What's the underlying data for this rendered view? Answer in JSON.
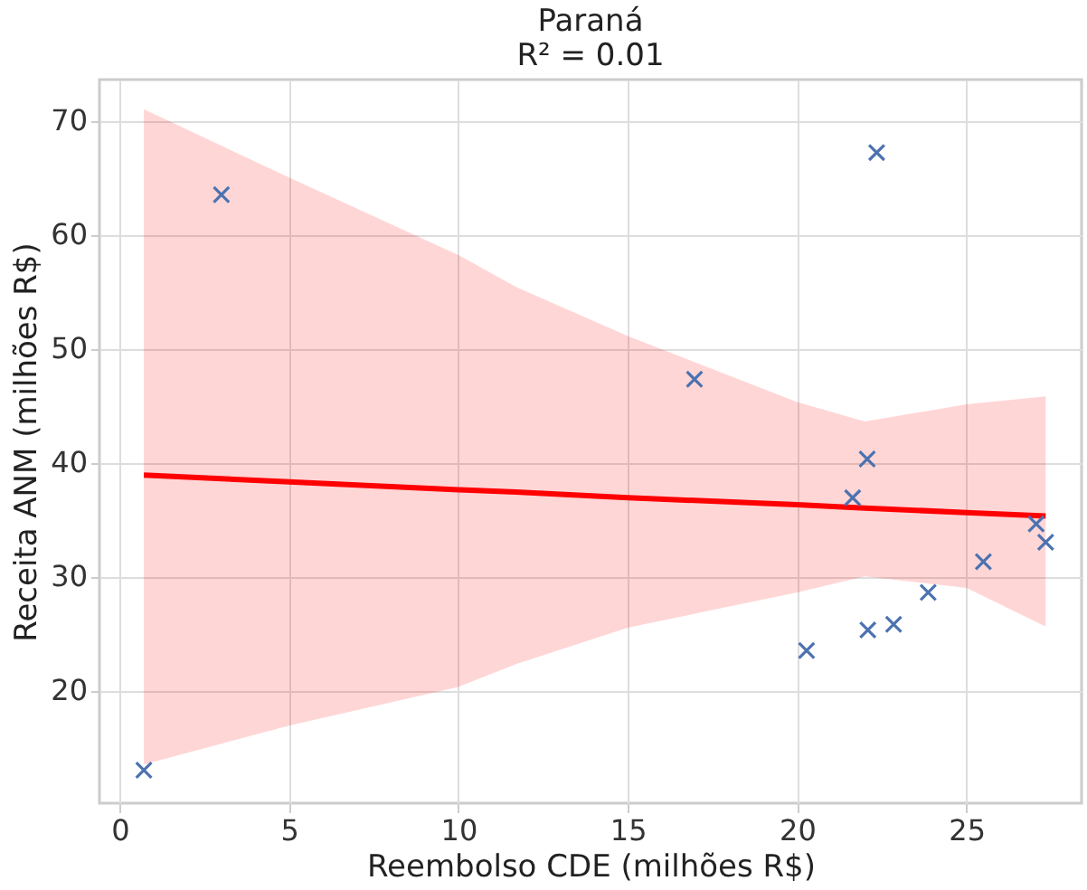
{
  "chart_data": {
    "type": "scatter",
    "title": "Paraná",
    "subtitle": "R² = 0.01",
    "xlabel": "Reembolso CDE (milhões R$)",
    "ylabel": "Receita ANM (milhões R$)",
    "xlim": [
      -0.6,
      28.4
    ],
    "ylim": [
      10.1,
      73.6
    ],
    "xticks": [
      0,
      5,
      10,
      15,
      20,
      25
    ],
    "yticks": [
      20,
      30,
      40,
      50,
      60,
      70
    ],
    "grid": true,
    "marker": "cross",
    "series": [
      {
        "color": "#4c72b0",
        "x": [
          0.71,
          3.0,
          16.97,
          22.35,
          22.07,
          21.64,
          20.28,
          22.09,
          22.85,
          23.87,
          25.5,
          27.06,
          27.34
        ],
        "values": [
          13.0,
          63.5,
          47.3,
          67.2,
          40.3,
          36.9,
          23.5,
          25.3,
          25.8,
          28.6,
          31.3,
          34.6,
          33.0
        ]
      },
      {
        "type": "line",
        "color": "#ff0000",
        "marker": "none",
        "x": [
          0.71,
          5,
          10,
          11.7,
          15,
          20,
          22,
          25,
          27.34
        ],
        "values": [
          38.9,
          38.3,
          37.6,
          37.4,
          36.9,
          36.3,
          36.0,
          35.6,
          35.3
        ],
        "lower": [
          13.5,
          16.9,
          20.3,
          22.3,
          25.5,
          28.6,
          30.0,
          29.0,
          25.6
        ],
        "upper": [
          71.0,
          65.0,
          58.2,
          55.4,
          51.1,
          45.3,
          43.6,
          45.1,
          45.8
        ]
      }
    ]
  }
}
